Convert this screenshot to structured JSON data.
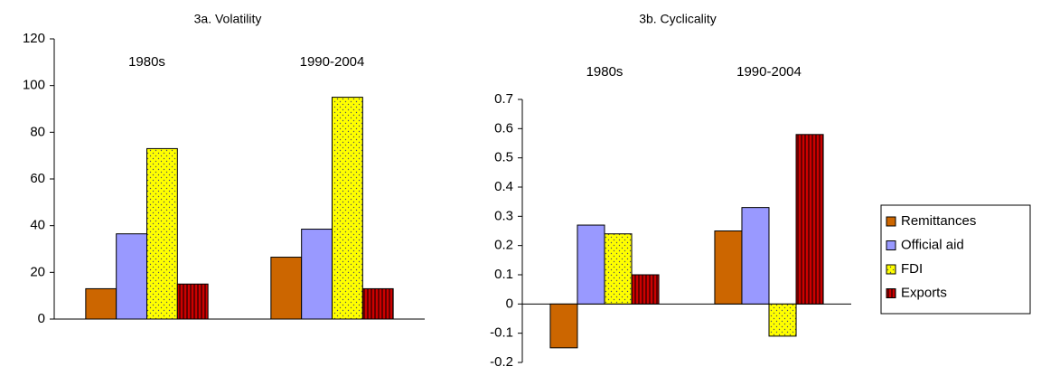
{
  "chart_data": [
    {
      "type": "bar",
      "title": "3a. Volatility",
      "categories": [
        "1980s",
        "1990-2004"
      ],
      "series": [
        {
          "color": "#cc6600",
          "values": [
            13,
            26.5
          ]
        },
        {
          "color": "#9999ff",
          "values": [
            36.5,
            38.5
          ]
        },
        {
          "color": "#ffff00",
          "pattern": "dots",
          "values": [
            73,
            95
          ]
        },
        {
          "color": "#cc0000",
          "pattern": "stripes",
          "values": [
            15,
            13
          ]
        }
      ],
      "ylim": [
        0,
        120
      ],
      "yticks": [
        0,
        20,
        40,
        60,
        80,
        100,
        120
      ]
    },
    {
      "type": "bar",
      "title": "3b. Cyclicality",
      "categories": [
        "1980s",
        "1990-2004"
      ],
      "series": [
        {
          "name": "Remittances",
          "color": "#cc6600",
          "values": [
            -0.15,
            0.25
          ]
        },
        {
          "name": "Official aid",
          "color": "#9999ff",
          "values": [
            0.27,
            0.33
          ]
        },
        {
          "name": "FDI",
          "color": "#ffff00",
          "pattern": "dots",
          "values": [
            0.24,
            -0.11
          ]
        },
        {
          "name": "Exports",
          "color": "#cc0000",
          "pattern": "stripes",
          "values": [
            0.1,
            0.58
          ]
        }
      ],
      "ylim": [
        -0.2,
        0.7
      ],
      "yticks": [
        -0.2,
        -0.1,
        0,
        0.1,
        0.2,
        0.3,
        0.4,
        0.5,
        0.6,
        0.7
      ],
      "legend": "right"
    }
  ]
}
